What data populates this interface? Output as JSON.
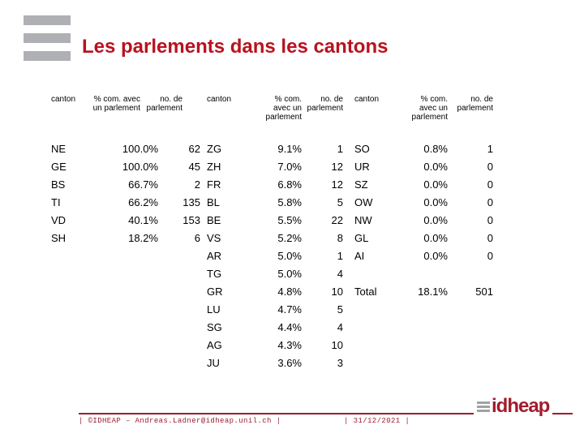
{
  "title": "Les parlements dans les cantons",
  "colors": {
    "title_red": "#b8121f",
    "footer_red": "#9e1b2e",
    "logo_gray": "#aeb0b3",
    "body_text": "#000000"
  },
  "icons": {
    "corner_logo": "three-gray-bars",
    "idheap_logo_bars": "three-gray-bars"
  },
  "table": {
    "headers": {
      "canton": "canton",
      "pct_two_line": "% com. avec\nun parlement",
      "pct_three_line": "% com.\navec un\nparlement",
      "num": "no. de\nparlement"
    },
    "groups": [
      {
        "rows": [
          {
            "canton": "NE",
            "pct": "100.0%",
            "num": "62"
          },
          {
            "canton": "GE",
            "pct": "100.0%",
            "num": "45"
          },
          {
            "canton": "BS",
            "pct": "66.7%",
            "num": "2"
          },
          {
            "canton": "TI",
            "pct": "66.2%",
            "num": "135"
          },
          {
            "canton": "VD",
            "pct": "40.1%",
            "num": "153"
          },
          {
            "canton": "SH",
            "pct": "18.2%",
            "num": "6"
          }
        ]
      },
      {
        "rows": [
          {
            "canton": "ZG",
            "pct": "9.1%",
            "num": "1"
          },
          {
            "canton": "ZH",
            "pct": "7.0%",
            "num": "12"
          },
          {
            "canton": "FR",
            "pct": "6.8%",
            "num": "12"
          },
          {
            "canton": "BL",
            "pct": "5.8%",
            "num": "5"
          },
          {
            "canton": "BE",
            "pct": "5.5%",
            "num": "22"
          },
          {
            "canton": "VS",
            "pct": "5.2%",
            "num": "8"
          },
          {
            "canton": "AR",
            "pct": "5.0%",
            "num": "1"
          },
          {
            "canton": "TG",
            "pct": "5.0%",
            "num": "4"
          },
          {
            "canton": "GR",
            "pct": "4.8%",
            "num": "10"
          },
          {
            "canton": "LU",
            "pct": "4.7%",
            "num": "5"
          },
          {
            "canton": "SG",
            "pct": "4.4%",
            "num": "4"
          },
          {
            "canton": "AG",
            "pct": "4.3%",
            "num": "10"
          },
          {
            "canton": "JU",
            "pct": "3.6%",
            "num": "3"
          }
        ]
      },
      {
        "rows": [
          {
            "canton": "SO",
            "pct": "0.8%",
            "num": "1"
          },
          {
            "canton": "UR",
            "pct": "0.0%",
            "num": "0"
          },
          {
            "canton": "SZ",
            "pct": "0.0%",
            "num": "0"
          },
          {
            "canton": "OW",
            "pct": "0.0%",
            "num": "0"
          },
          {
            "canton": "NW",
            "pct": "0.0%",
            "num": "0"
          },
          {
            "canton": "GL",
            "pct": "0.0%",
            "num": "0"
          },
          {
            "canton": "AI",
            "pct": "0.0%",
            "num": "0"
          }
        ]
      }
    ],
    "total": {
      "canton": "Total",
      "pct": "18.1%",
      "num": "501"
    }
  },
  "footer": {
    "credit": "| ©IDHEAP – Andreas.Ladner@idheap.unil.ch |",
    "date": "| 31/12/2021 |",
    "logo_text": "idheap"
  }
}
